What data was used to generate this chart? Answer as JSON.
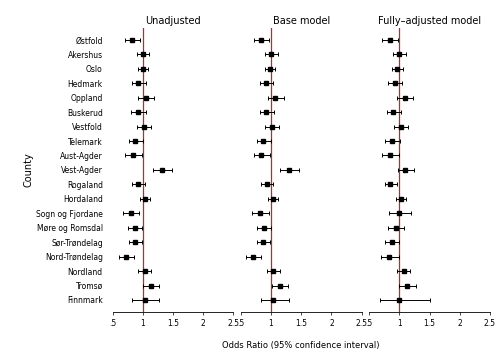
{
  "counties": [
    "Østfold",
    "Akershus",
    "Oslo",
    "Hedmark",
    "Oppland",
    "Buskerud",
    "Vestfold",
    "Telemark",
    "Aust-Agder",
    "Vest-Agder",
    "Rogaland",
    "Hordaland",
    "Sogn og Fjordane",
    "Møre og Romsdal",
    "Sør-Trøndelag",
    "Nord-Trøndelag",
    "Nordland",
    "Tromsø",
    "Finnmark"
  ],
  "unadjusted": {
    "or": [
      0.82,
      1.0,
      1.0,
      0.93,
      1.05,
      0.92,
      1.02,
      0.88,
      0.84,
      1.32,
      0.92,
      1.03,
      0.8,
      0.87,
      0.87,
      0.72,
      1.03,
      1.13,
      1.03
    ],
    "lo": [
      0.7,
      0.9,
      0.92,
      0.82,
      0.93,
      0.81,
      0.91,
      0.77,
      0.71,
      1.17,
      0.82,
      0.95,
      0.67,
      0.76,
      0.77,
      0.6,
      0.93,
      1.0,
      0.83
    ],
    "hi": [
      0.95,
      1.11,
      1.09,
      1.05,
      1.18,
      1.05,
      1.14,
      1.01,
      0.99,
      1.48,
      1.03,
      1.12,
      0.94,
      0.99,
      0.99,
      0.85,
      1.14,
      1.27,
      1.27
    ]
  },
  "base": {
    "or": [
      0.83,
      1.0,
      0.98,
      0.92,
      1.07,
      0.92,
      1.01,
      0.87,
      0.84,
      1.3,
      0.93,
      1.03,
      0.82,
      0.88,
      0.87,
      0.7,
      1.04,
      1.14,
      1.04
    ],
    "lo": [
      0.71,
      0.9,
      0.9,
      0.81,
      0.95,
      0.81,
      0.9,
      0.76,
      0.71,
      1.15,
      0.83,
      0.95,
      0.69,
      0.77,
      0.77,
      0.58,
      0.94,
      1.01,
      0.83
    ],
    "hi": [
      0.97,
      1.11,
      1.07,
      1.04,
      1.21,
      1.05,
      1.13,
      1.0,
      0.99,
      1.47,
      1.04,
      1.12,
      0.97,
      1.0,
      0.99,
      0.84,
      1.15,
      1.28,
      1.29
    ]
  },
  "fully": {
    "or": [
      0.84,
      1.0,
      0.96,
      0.92,
      1.09,
      0.9,
      1.02,
      0.88,
      0.84,
      1.1,
      0.85,
      1.02,
      1.0,
      0.94,
      0.87,
      0.83,
      1.07,
      1.13,
      1.0
    ],
    "lo": [
      0.72,
      0.9,
      0.88,
      0.81,
      0.96,
      0.79,
      0.91,
      0.77,
      0.71,
      0.97,
      0.76,
      0.94,
      0.83,
      0.82,
      0.77,
      0.69,
      0.96,
      1.0,
      0.68
    ],
    "hi": [
      0.98,
      1.11,
      1.06,
      1.05,
      1.23,
      1.03,
      1.14,
      1.01,
      1.0,
      1.25,
      0.96,
      1.11,
      1.19,
      1.07,
      0.99,
      0.99,
      1.18,
      1.28,
      1.5
    ]
  },
  "xlim": [
    0.5,
    2.5
  ],
  "xticks": [
    0.5,
    1.0,
    1.5,
    2.0,
    2.5
  ],
  "xticklabels": [
    ".5",
    "1",
    "1.5",
    "2",
    "2.5"
  ],
  "ref_line": 1.0,
  "panel_titles": [
    "Unadjusted",
    "Base model",
    "Fully–adjusted model"
  ],
  "xlabel": "Odds Ratio (95% confidence interval)",
  "ylabel": "County",
  "marker_color": "black",
  "ref_color": "#cc2222",
  "bg_color": "white",
  "marker_size": 2.5,
  "line_width": 0.7,
  "cap_size": 1.5
}
